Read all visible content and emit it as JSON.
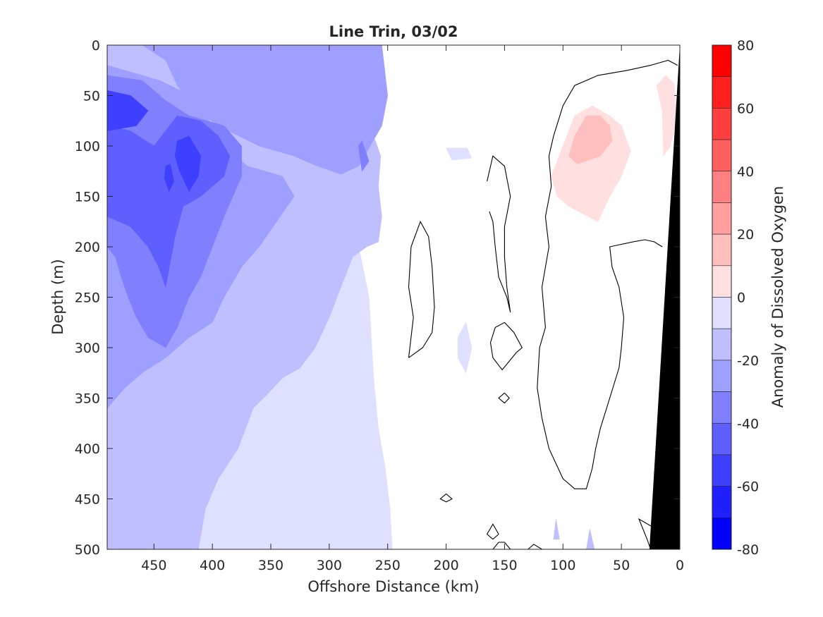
{
  "chart_data": {
    "type": "heatmap",
    "title": "Line Trin, 03/02",
    "xlabel": "Offshore Distance (km)",
    "ylabel": "Depth (m)",
    "colorbar_label": "Anomaly of Dissolved Oxygen",
    "xlim": [
      490,
      0
    ],
    "ylim": [
      0,
      500
    ],
    "x_reversed": true,
    "y_reversed": true,
    "x_ticks": [
      450,
      400,
      350,
      300,
      250,
      200,
      150,
      100,
      50,
      0
    ],
    "y_ticks": [
      0,
      50,
      100,
      150,
      200,
      250,
      300,
      350,
      400,
      450,
      500
    ],
    "x_tick_labels": [
      "450",
      "400",
      "350",
      "300",
      "250",
      "200",
      "150",
      "100",
      "50",
      "0"
    ],
    "y_tick_labels": [
      "0",
      "50",
      "100",
      "150",
      "200",
      "250",
      "300",
      "350",
      "400",
      "450",
      "500"
    ],
    "colorbar": {
      "min": -80,
      "max": 80,
      "level_step": 10,
      "tick_values": [
        80,
        60,
        40,
        20,
        0,
        -20,
        -40,
        -60,
        -80
      ],
      "tick_labels": [
        "80",
        "60",
        "40",
        "20",
        "0",
        "-20",
        "-40",
        "-60",
        "-80"
      ],
      "colors": {
        "80": "#ff0000",
        "70": "#ff1f1f",
        "60": "#ff3f3f",
        "50": "#ff5f5f",
        "40": "#ff8080",
        "30": "#ff9f9f",
        "20": "#ffbfbf",
        "10": "#ffdfdf",
        "0": "#ffffff",
        "-10": "#dfdfff",
        "-20": "#bfbfff",
        "-30": "#9f9fff",
        "-40": "#8080ff",
        "-50": "#5f5fff",
        "-60": "#3f3fff",
        "-70": "#1f1fff",
        "-80": "#0000ff"
      }
    },
    "contour_levels": [
      {
        "level": -10,
        "color": "#dfdfff",
        "regions": [
          [
            [
              490,
              0
            ],
            [
              270,
              0
            ],
            [
              260,
              20
            ],
            [
              262,
              60
            ],
            [
              270,
              110
            ],
            [
              280,
              170
            ],
            [
              266,
              250
            ],
            [
              262,
              330
            ],
            [
              258,
              380
            ],
            [
              252,
              420
            ],
            [
              248,
              460
            ],
            [
              246,
              500
            ],
            [
              490,
              500
            ]
          ],
          [
            [
              200,
              102
            ],
            [
              182,
              102
            ],
            [
              178,
              112
            ],
            [
              195,
              114
            ]
          ],
          [
            [
              190,
              290
            ],
            [
              183,
              275
            ],
            [
              178,
              300
            ],
            [
              183,
              325
            ],
            [
              190,
              310
            ]
          ],
          [
            [
              450,
              500
            ],
            [
              443,
              480
            ],
            [
              438,
              470
            ],
            [
              433,
              500
            ]
          ]
        ]
      },
      {
        "level": -20,
        "color": "#bfbfff",
        "regions": [
          [
            [
              490,
              0
            ],
            [
              310,
              0
            ],
            [
              318,
              15
            ],
            [
              325,
              40
            ],
            [
              310,
              60
            ],
            [
              280,
              75
            ],
            [
              262,
              90
            ],
            [
              256,
              110
            ],
            [
              258,
              140
            ],
            [
              255,
              170
            ],
            [
              258,
              195
            ],
            [
              268,
              200
            ],
            [
              280,
              210
            ],
            [
              290,
              240
            ],
            [
              300,
              270
            ],
            [
              312,
              300
            ],
            [
              325,
              320
            ],
            [
              340,
              330
            ],
            [
              352,
              345
            ],
            [
              365,
              360
            ],
            [
              378,
              400
            ],
            [
              395,
              430
            ],
            [
              406,
              460
            ],
            [
              412,
              500
            ],
            [
              490,
              500
            ]
          ],
          [
            [
              80,
              500
            ],
            [
              77,
              480
            ],
            [
              73,
              500
            ]
          ],
          [
            [
              108,
              490
            ],
            [
              106,
              470
            ],
            [
              103,
              490
            ]
          ]
        ]
      },
      {
        "level": -30,
        "color": "#9f9fff",
        "regions": [
          [
            [
              490,
              20
            ],
            [
              445,
              35
            ],
            [
              410,
              55
            ],
            [
              395,
              95
            ],
            [
              370,
              120
            ],
            [
              340,
              130
            ],
            [
              330,
              150
            ],
            [
              360,
              200
            ],
            [
              375,
              220
            ],
            [
              390,
              250
            ],
            [
              400,
              275
            ],
            [
              420,
              290
            ],
            [
              440,
              310
            ],
            [
              460,
              325
            ],
            [
              475,
              340
            ],
            [
              490,
              360
            ]
          ],
          [
            [
              490,
              0
            ],
            [
              460,
              0
            ],
            [
              440,
              15
            ],
            [
              430,
              40
            ],
            [
              418,
              60
            ],
            [
              395,
              80
            ],
            [
              360,
              100
            ],
            [
              330,
              110
            ],
            [
              310,
              120
            ],
            [
              290,
              128
            ],
            [
              275,
              120
            ],
            [
              265,
              100
            ],
            [
              255,
              80
            ],
            [
              250,
              50
            ],
            [
              255,
              0
            ]
          ]
        ]
      },
      {
        "level": -40,
        "color": "#8080ff",
        "regions": [
          [
            [
              490,
              30
            ],
            [
              460,
              35
            ],
            [
              440,
              55
            ],
            [
              420,
              70
            ],
            [
              390,
              80
            ],
            [
              375,
              100
            ],
            [
              375,
              130
            ],
            [
              390,
              170
            ],
            [
              400,
              200
            ],
            [
              410,
              230
            ],
            [
              420,
              250
            ],
            [
              430,
              280
            ],
            [
              440,
              300
            ],
            [
              455,
              290
            ],
            [
              465,
              270
            ],
            [
              472,
              250
            ],
            [
              478,
              230
            ],
            [
              483,
              210
            ],
            [
              490,
              200
            ]
          ],
          [
            [
              275,
              100
            ],
            [
              272,
              95
            ],
            [
              266,
              115
            ],
            [
              272,
              125
            ]
          ]
        ]
      },
      {
        "level": -50,
        "color": "#5f5fff",
        "regions": [
          [
            [
              490,
              80
            ],
            [
              470,
              85
            ],
            [
              450,
              100
            ],
            [
              430,
              70
            ],
            [
              410,
              75
            ],
            [
              395,
              90
            ],
            [
              385,
              110
            ],
            [
              390,
              130
            ],
            [
              410,
              150
            ],
            [
              425,
              160
            ],
            [
              432,
              190
            ],
            [
              436,
              215
            ],
            [
              440,
              240
            ],
            [
              446,
              220
            ],
            [
              455,
              200
            ],
            [
              470,
              180
            ],
            [
              490,
              170
            ]
          ]
        ]
      },
      {
        "level": -60,
        "color": "#3f3fff",
        "regions": [
          [
            [
              490,
              45
            ],
            [
              470,
              50
            ],
            [
              455,
              65
            ],
            [
              465,
              80
            ],
            [
              490,
              85
            ]
          ],
          [
            [
              430,
              95
            ],
            [
              420,
              90
            ],
            [
              410,
              110
            ],
            [
              412,
              130
            ],
            [
              420,
              145
            ],
            [
              428,
              125
            ],
            [
              432,
              110
            ]
          ],
          [
            [
              440,
              120
            ],
            [
              436,
              118
            ],
            [
              433,
              135
            ],
            [
              437,
              145
            ],
            [
              441,
              132
            ]
          ]
        ]
      },
      {
        "level": 10,
        "color": "#ffdfdf",
        "regions": [
          [
            [
              110,
              130
            ],
            [
              100,
              100
            ],
            [
              90,
              70
            ],
            [
              75,
              60
            ],
            [
              60,
              70
            ],
            [
              50,
              80
            ],
            [
              42,
              105
            ],
            [
              50,
              130
            ],
            [
              60,
              150
            ],
            [
              70,
              175
            ],
            [
              95,
              160
            ],
            [
              105,
              150
            ]
          ],
          [
            [
              15,
              65
            ],
            [
              20,
              40
            ],
            [
              12,
              30
            ],
            [
              5,
              38
            ],
            [
              2,
              70
            ],
            [
              8,
              100
            ],
            [
              14,
              110
            ]
          ],
          [
            [
              26,
              490
            ],
            [
              22,
              482
            ],
            [
              18,
              493
            ]
          ]
        ]
      },
      {
        "level": 20,
        "color": "#ffbfbf",
        "regions": [
          [
            [
              95,
              110
            ],
            [
              90,
              90
            ],
            [
              80,
              70
            ],
            [
              68,
              70
            ],
            [
              60,
              80
            ],
            [
              58,
              95
            ],
            [
              68,
              110
            ],
            [
              88,
              118
            ]
          ]
        ]
      }
    ],
    "zero_contour_lines": [
      [
        [
          2,
          20
        ],
        [
          10,
          15
        ],
        [
          25,
          20
        ],
        [
          45,
          25
        ],
        [
          70,
          30
        ],
        [
          90,
          40
        ],
        [
          100,
          60
        ],
        [
          108,
          90
        ],
        [
          112,
          110
        ],
        [
          110,
          140
        ],
        [
          115,
          170
        ],
        [
          112,
          200
        ],
        [
          118,
          240
        ],
        [
          115,
          280
        ],
        [
          120,
          300
        ],
        [
          122,
          340
        ],
        [
          118,
          370
        ],
        [
          112,
          400
        ],
        [
          100,
          430
        ],
        [
          90,
          440
        ],
        [
          80,
          440
        ],
        [
          75,
          420
        ],
        [
          72,
          400
        ],
        [
          68,
          380
        ],
        [
          60,
          350
        ],
        [
          52,
          320
        ],
        [
          50,
          300
        ],
        [
          48,
          270
        ],
        [
          52,
          240
        ],
        [
          58,
          220
        ],
        [
          60,
          200
        ],
        [
          40,
          195
        ],
        [
          30,
          193
        ],
        [
          22,
          195
        ],
        [
          15,
          200
        ]
      ],
      [
        [
          232,
          310
        ],
        [
          228,
          270
        ],
        [
          232,
          240
        ],
        [
          230,
          200
        ],
        [
          222,
          175
        ],
        [
          215,
          190
        ],
        [
          212,
          220
        ],
        [
          210,
          260
        ],
        [
          212,
          285
        ],
        [
          220,
          300
        ],
        [
          232,
          310
        ]
      ],
      [
        [
          165,
          135
        ],
        [
          160,
          110
        ],
        [
          150,
          120
        ],
        [
          145,
          150
        ],
        [
          150,
          180
        ],
        [
          150,
          210
        ],
        [
          148,
          240
        ],
        [
          145,
          265
        ],
        [
          148,
          250
        ],
        [
          155,
          230
        ],
        [
          158,
          200
        ],
        [
          160,
          175
        ],
        [
          163,
          165
        ]
      ],
      [
        [
          150,
          275
        ],
        [
          142,
          285
        ],
        [
          135,
          300
        ],
        [
          140,
          305
        ],
        [
          152,
          322
        ],
        [
          160,
          310
        ],
        [
          162,
          295
        ],
        [
          158,
          280
        ],
        [
          150,
          275
        ]
      ],
      [
        [
          150,
          345
        ],
        [
          155,
          350
        ],
        [
          150,
          355
        ],
        [
          146,
          350
        ],
        [
          150,
          345
        ]
      ],
      [
        [
          200,
          445
        ],
        [
          195,
          450
        ],
        [
          200,
          453
        ],
        [
          205,
          450
        ],
        [
          200,
          445
        ]
      ],
      [
        [
          155,
          485
        ],
        [
          160,
          475
        ],
        [
          165,
          485
        ],
        [
          160,
          490
        ],
        [
          155,
          485
        ]
      ],
      [
        [
          160,
          500
        ],
        [
          155,
          493
        ],
        [
          150,
          493
        ],
        [
          145,
          500
        ]
      ],
      [
        [
          130,
          500
        ],
        [
          125,
          495
        ],
        [
          118,
          500
        ]
      ],
      [
        [
          25,
          500
        ],
        [
          20,
          480
        ],
        [
          35,
          470
        ],
        [
          28,
          490
        ],
        [
          25,
          500
        ]
      ]
    ],
    "land_mask": [
      [
        0,
        0
      ],
      [
        0,
        500
      ],
      [
        26,
        500
      ]
    ]
  }
}
